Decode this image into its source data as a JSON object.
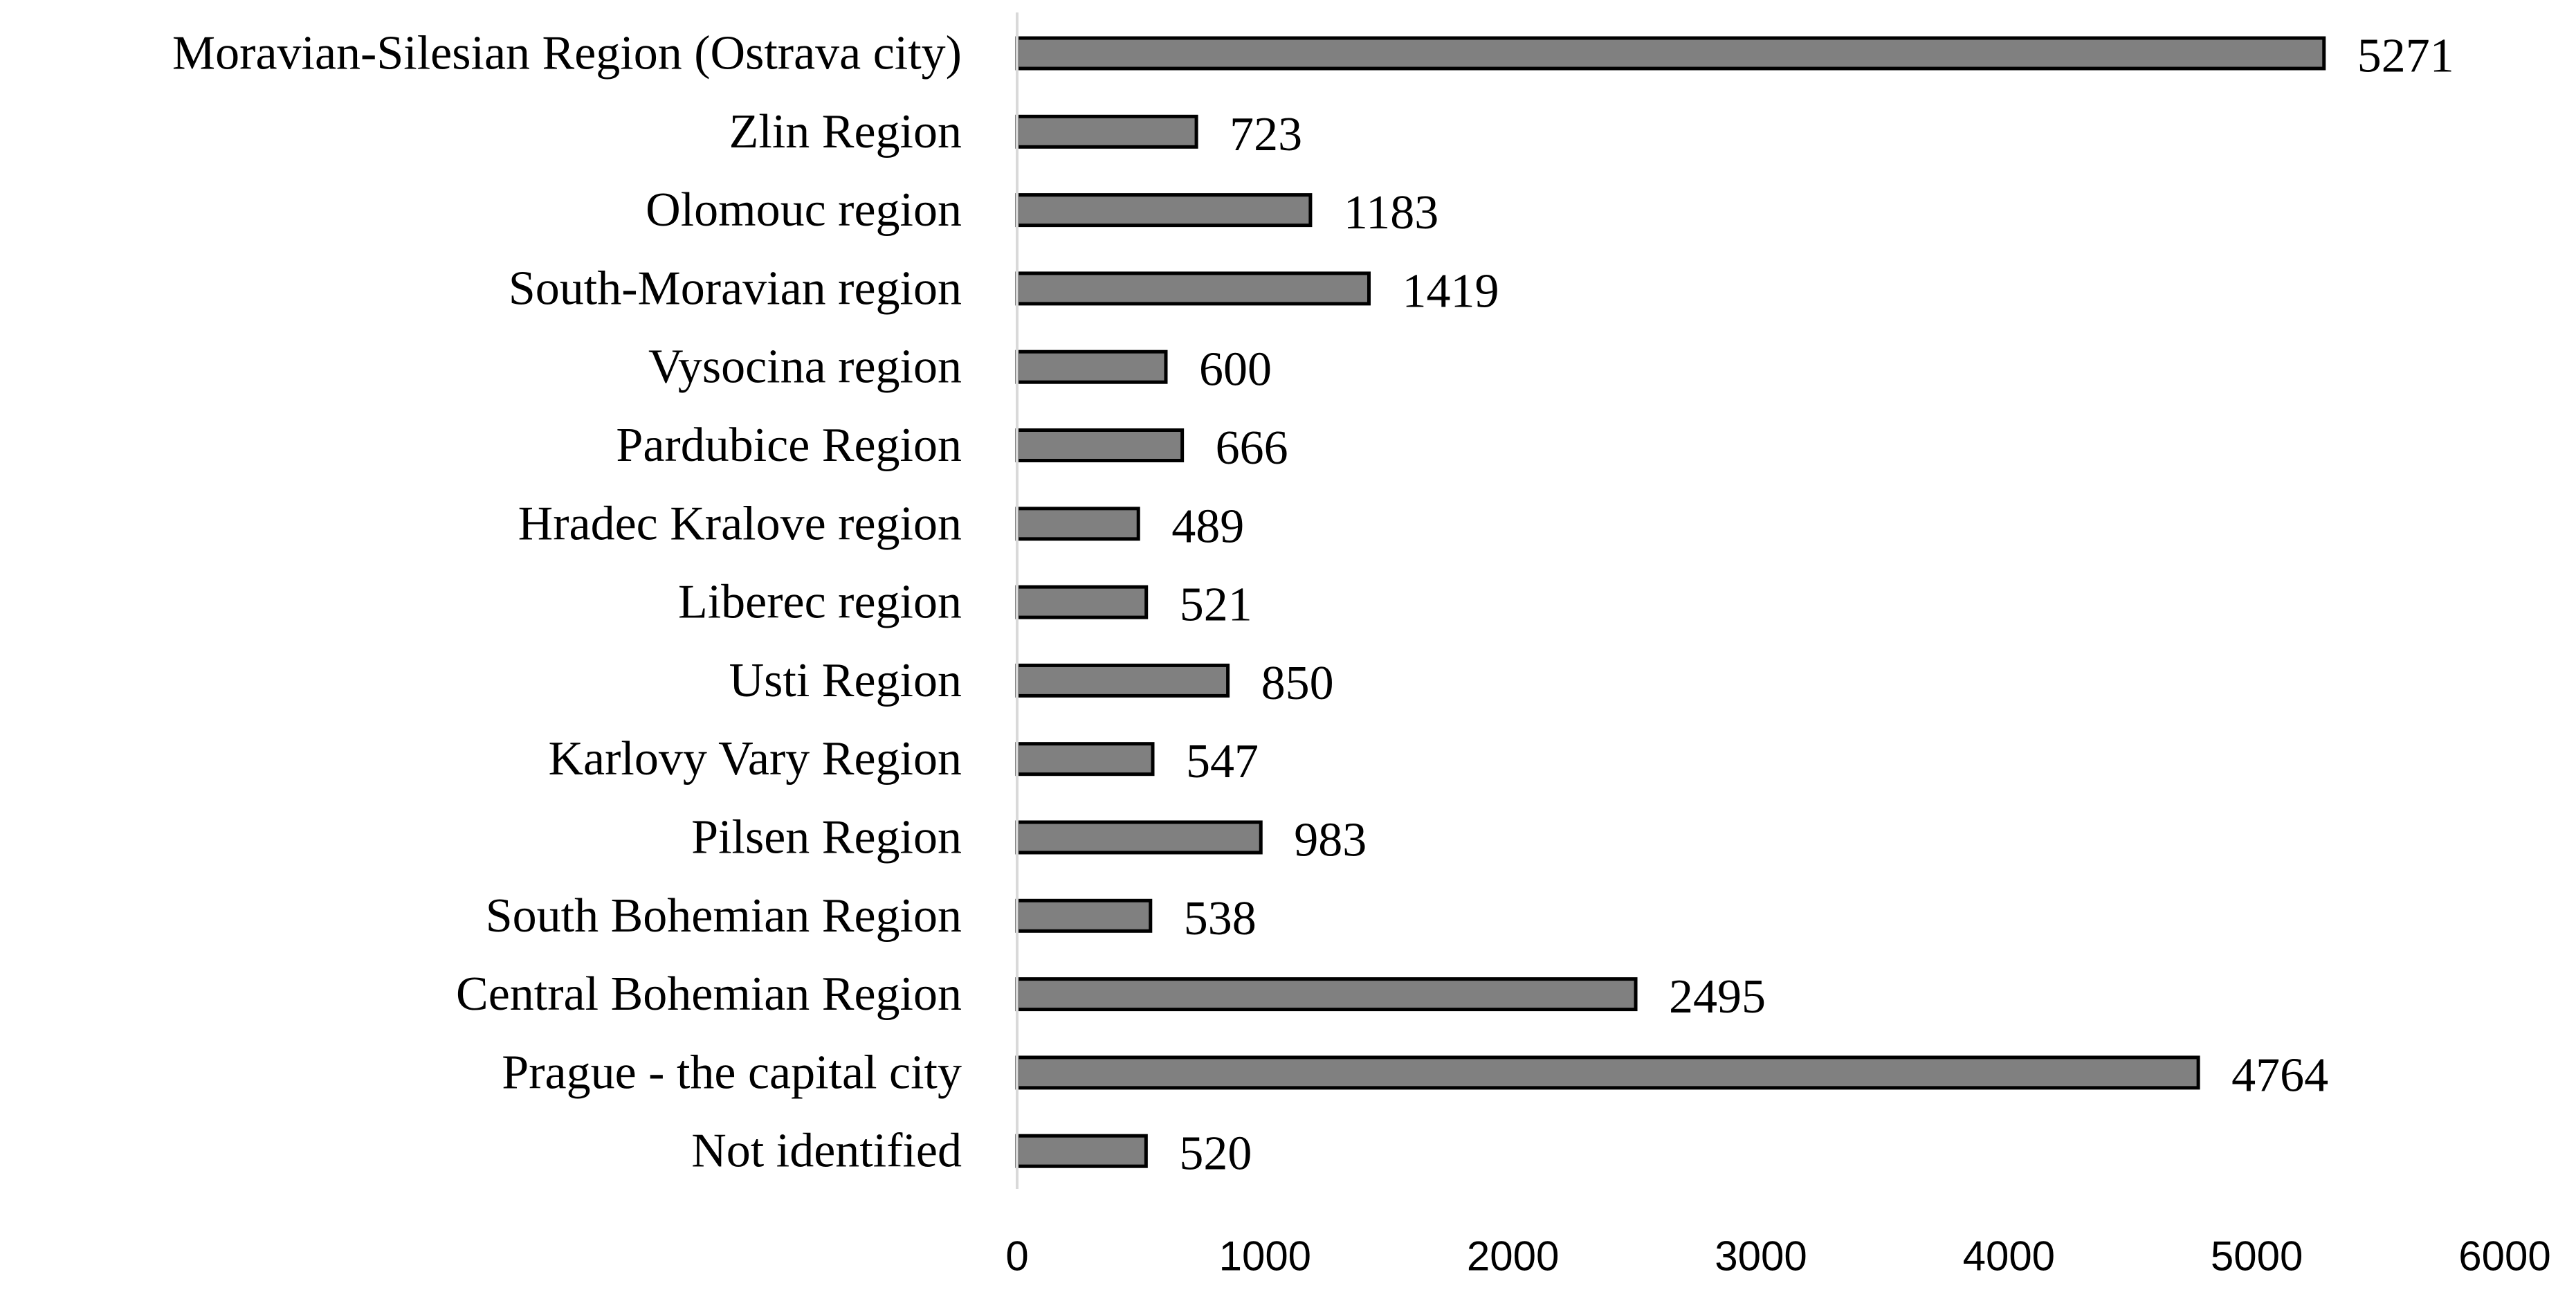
{
  "chart_data": {
    "type": "bar",
    "orientation": "horizontal",
    "categories": [
      "Moravian-Silesian Region (Ostrava city)",
      "Zlin Region",
      "Olomouc region",
      "South-Moravian region",
      "Vysocina region",
      "Pardubice Region",
      "Hradec Kralove region",
      "Liberec region",
      "Usti Region",
      "Karlovy Vary Region",
      "Pilsen Region",
      "South Bohemian Region",
      "Central Bohemian Region",
      "Prague - the capital city",
      "Not identified"
    ],
    "values": [
      5271,
      723,
      1183,
      1419,
      600,
      666,
      489,
      521,
      850,
      547,
      983,
      538,
      2495,
      4764,
      520
    ],
    "value_labels": [
      "5271",
      "723",
      "1183",
      "1419",
      "600",
      "666",
      "489",
      "521",
      "850",
      "547",
      "983",
      "538",
      "2495",
      "4764",
      "520"
    ],
    "x_ticks": [
      "0",
      "1000",
      "2000",
      "3000",
      "4000",
      "5000",
      "6000"
    ],
    "xlim": [
      0,
      6000
    ],
    "title": "",
    "xlabel": "",
    "ylabel": "",
    "grid": false,
    "legend": "none",
    "bar_color": "#808080",
    "bar_edge_color": "#000000",
    "axis_color": "#d9d9d9"
  }
}
